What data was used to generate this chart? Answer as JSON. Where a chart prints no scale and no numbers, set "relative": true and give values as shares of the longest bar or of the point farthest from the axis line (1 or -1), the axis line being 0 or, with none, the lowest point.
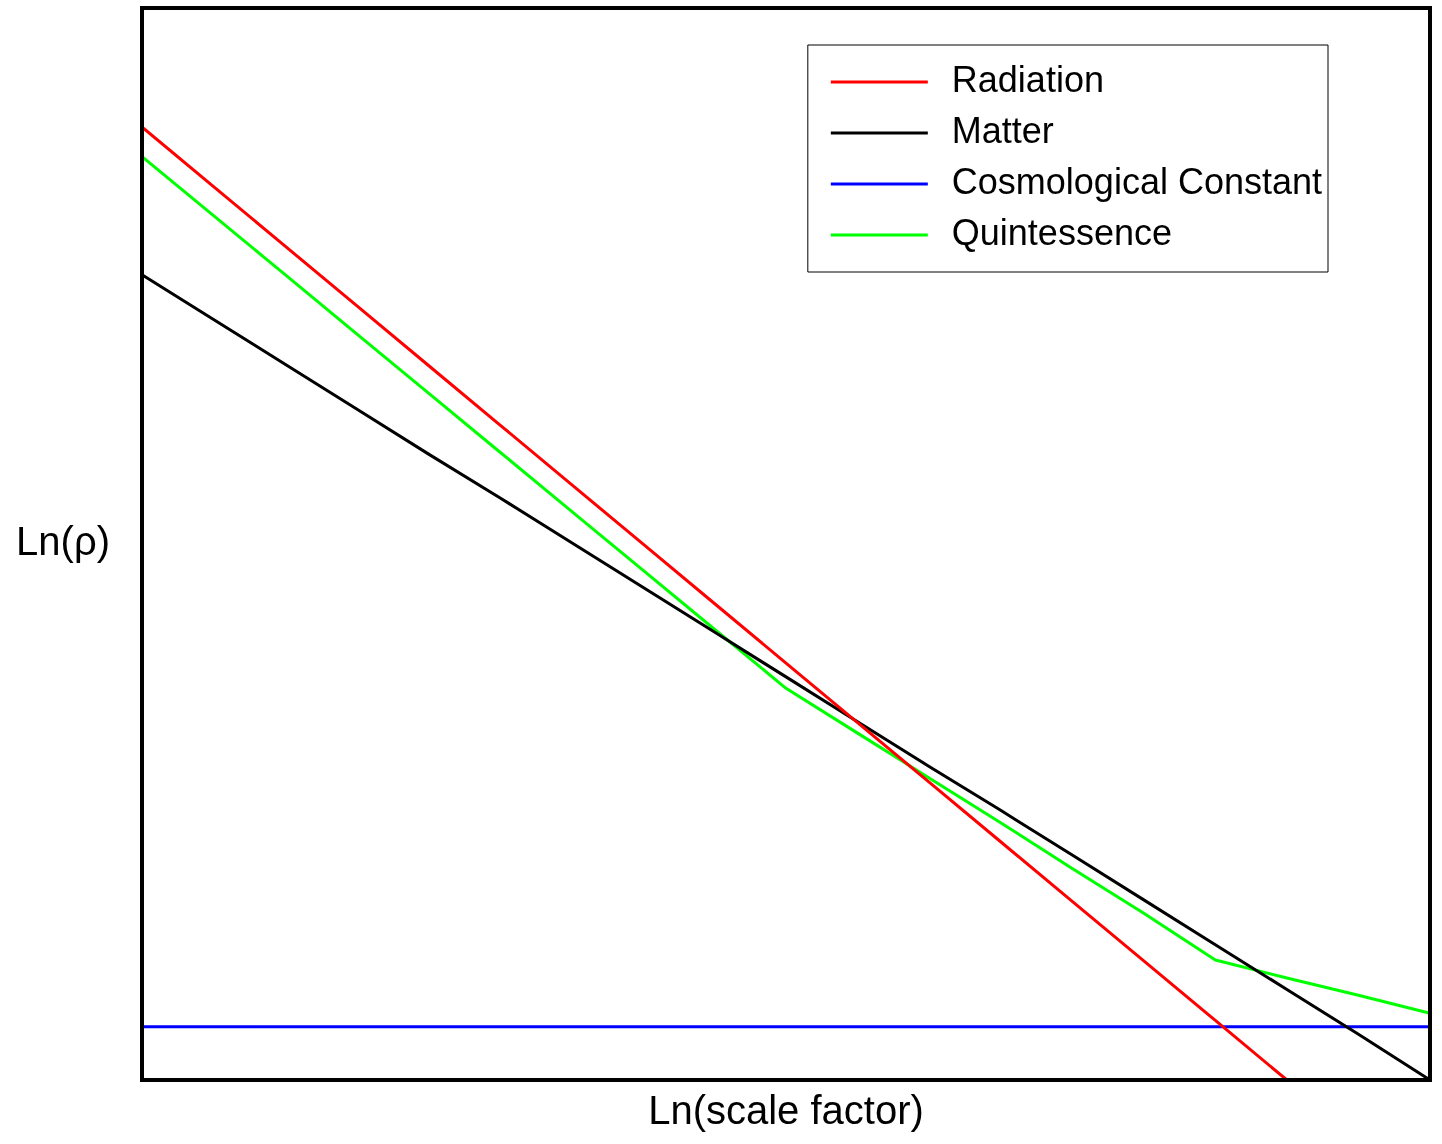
{
  "chart_data": {
    "type": "line",
    "xlabel": "Ln(scale factor)",
    "ylabel": "Ln(ρ)",
    "relative": true,
    "legend": "top right",
    "grid": false,
    "marker": "none",
    "line_style": "solid",
    "categories": [
      null,
      null,
      null,
      null,
      null,
      null,
      null,
      null,
      null,
      null,
      null,
      null,
      null,
      null,
      null,
      null,
      null,
      null,
      null
    ],
    "series": [
      {
        "name": "Radiation",
        "color": "#ff0000",
        "values": [
          1,
          0.9375,
          0.875,
          0.8125,
          0.75,
          0.6875,
          0.625,
          0.5625,
          0.5,
          0.4375,
          0.375,
          0.3125,
          0.25,
          0.1875,
          0.125,
          0.0625,
          0,
          null,
          null
        ]
      },
      {
        "name": "Matter",
        "color": "#000000",
        "values": [
          0.845,
          0.798,
          0.751,
          0.704,
          0.657,
          0.611,
          0.564,
          0.517,
          0.47,
          0.423,
          0.376,
          0.329,
          0.283,
          0.236,
          0.189,
          0.142,
          0.095,
          0.048,
          0
        ]
      },
      {
        "name": "Cosmological Constant",
        "color": "#0000ff",
        "values": [
          0.056,
          0.056,
          0.056,
          0.056,
          0.056,
          0.056,
          0.056,
          0.056,
          0.056,
          0.056,
          0.056,
          0.056,
          0.056,
          0.056,
          0.056,
          0.056,
          0.056,
          0.056,
          0.056
        ]
      },
      {
        "name": "Quintessence",
        "color": "#00ff00",
        "values": [
          0.969,
          0.907,
          0.845,
          0.783,
          0.721,
          0.659,
          0.597,
          0.535,
          0.473,
          0.411,
          0.364,
          0.317,
          0.27,
          0.222,
          0.175,
          0.126,
          0.107,
          0.089,
          0.07
        ]
      }
    ]
  }
}
